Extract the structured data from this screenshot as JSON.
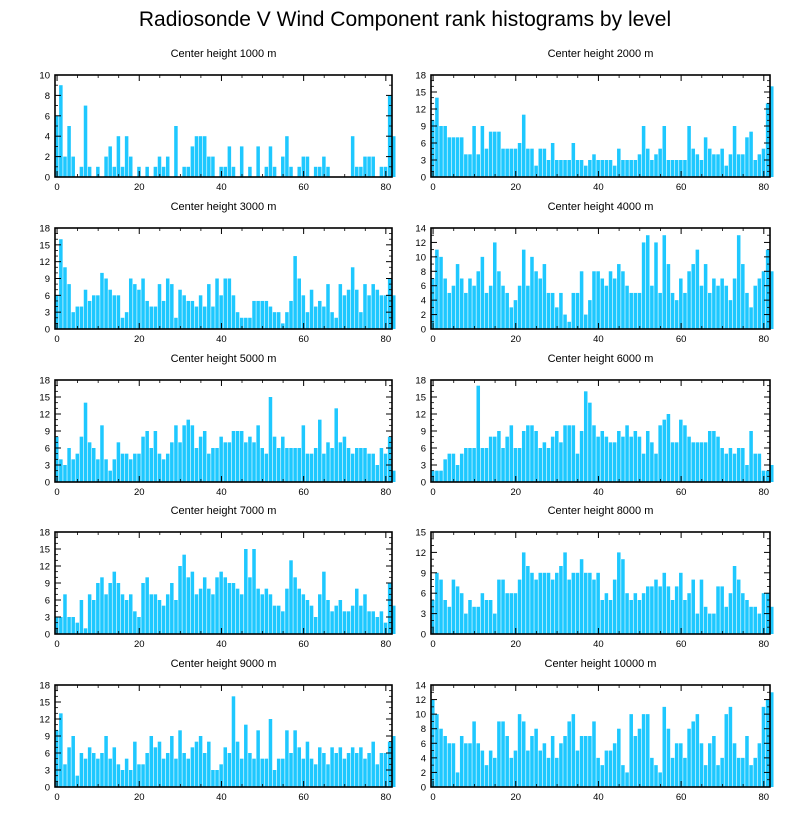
{
  "title": "Radiosonde V Wind Component rank histograms by level",
  "bar_color": "#1ec8ff",
  "axis_color": "#000000",
  "chart_data": [
    {
      "type": "bar",
      "title": "Center height 1000 m",
      "ylim": [
        0,
        10
      ],
      "yticks": [
        0,
        2,
        4,
        6,
        8,
        10
      ],
      "xlim": [
        -0.5,
        81.5
      ],
      "xticks": [
        0,
        20,
        40,
        60,
        80
      ],
      "values": [
        6,
        9,
        2,
        5,
        2,
        0,
        1,
        7,
        1,
        0,
        1,
        0,
        2,
        3,
        1,
        4,
        1,
        4,
        2,
        0,
        1,
        0,
        1,
        0,
        1,
        2,
        1,
        2,
        0,
        5,
        0,
        1,
        1,
        3,
        4,
        4,
        4,
        2,
        2,
        0,
        1,
        1,
        3,
        1,
        0,
        3,
        0,
        1,
        0,
        3,
        0,
        1,
        3,
        1,
        0,
        2,
        4,
        1,
        0,
        1,
        2,
        2,
        0,
        1,
        1,
        2,
        1,
        0,
        0,
        0,
        0,
        0,
        4,
        1,
        1,
        2,
        2,
        2,
        0,
        1,
        1,
        8,
        4
      ]
    },
    {
      "type": "bar",
      "title": "Center height 2000 m",
      "ylim": [
        0,
        18
      ],
      "yticks": [
        0,
        3,
        6,
        9,
        12,
        15,
        18
      ],
      "xlim": [
        -0.5,
        81.5
      ],
      "xticks": [
        0,
        20,
        40,
        60,
        80
      ],
      "values": [
        10,
        14,
        9,
        9,
        7,
        7,
        7,
        7,
        4,
        4,
        9,
        4,
        9,
        5,
        8,
        8,
        8,
        5,
        5,
        5,
        5,
        6,
        11,
        5,
        5,
        2,
        5,
        5,
        3,
        6,
        3,
        3,
        3,
        3,
        6,
        3,
        3,
        2,
        3,
        4,
        3,
        3,
        3,
        3,
        2,
        5,
        3,
        3,
        3,
        3,
        4,
        9,
        5,
        3,
        4,
        5,
        9,
        3,
        3,
        3,
        3,
        3,
        9,
        5,
        4,
        3,
        7,
        5,
        4,
        4,
        5,
        2,
        4,
        9,
        4,
        4,
        7,
        8,
        3,
        4,
        5,
        13,
        16
      ]
    },
    {
      "type": "bar",
      "title": "Center height 3000 m",
      "ylim": [
        0,
        18
      ],
      "yticks": [
        0,
        3,
        6,
        9,
        12,
        15,
        18
      ],
      "xlim": [
        -0.5,
        81.5
      ],
      "xticks": [
        0,
        20,
        40,
        60,
        80
      ],
      "values": [
        6,
        16,
        11,
        8,
        3,
        4,
        4,
        7,
        5,
        6,
        6,
        10,
        9,
        7,
        6,
        6,
        2,
        3,
        9,
        8,
        7,
        9,
        5,
        4,
        4,
        8,
        5,
        9,
        8,
        2,
        7,
        6,
        5,
        5,
        4,
        6,
        4,
        8,
        4,
        9,
        6,
        9,
        9,
        6,
        3,
        2,
        2,
        2,
        5,
        5,
        5,
        5,
        4,
        3,
        3,
        1,
        3,
        5,
        13,
        9,
        6,
        3,
        7,
        4,
        5,
        4,
        8,
        3,
        2,
        8,
        6,
        7,
        11,
        7,
        3,
        8,
        6,
        8,
        7,
        6,
        6,
        9,
        6
      ]
    },
    {
      "type": "bar",
      "title": "Center height 4000 m",
      "ylim": [
        0,
        14
      ],
      "yticks": [
        0,
        2,
        4,
        6,
        8,
        10,
        12,
        14
      ],
      "xlim": [
        -0.5,
        81.5
      ],
      "xticks": [
        0,
        20,
        40,
        60,
        80
      ],
      "values": [
        7,
        11,
        10,
        7,
        5,
        6,
        9,
        7,
        5,
        7,
        6,
        8,
        10,
        5,
        6,
        12,
        8,
        6,
        5,
        3,
        4,
        6,
        11,
        6,
        10,
        8,
        7,
        9,
        5,
        5,
        3,
        5,
        2,
        1,
        5,
        5,
        8,
        2,
        4,
        8,
        8,
        7,
        6,
        8,
        7,
        9,
        8,
        6,
        5,
        5,
        5,
        12,
        13,
        6,
        12,
        5,
        13,
        9,
        5,
        4,
        7,
        5,
        8,
        9,
        11,
        6,
        9,
        5,
        7,
        6,
        7,
        6,
        4,
        7,
        13,
        9,
        5,
        3,
        6,
        7,
        8,
        11,
        8
      ]
    },
    {
      "type": "bar",
      "title": "Center height 5000 m",
      "ylim": [
        0,
        18
      ],
      "yticks": [
        0,
        3,
        6,
        9,
        12,
        15,
        18
      ],
      "xlim": [
        -0.5,
        81.5
      ],
      "xticks": [
        0,
        20,
        40,
        60,
        80
      ],
      "values": [
        8,
        4,
        3,
        6,
        4,
        5,
        8,
        14,
        7,
        6,
        4,
        10,
        4,
        2,
        4,
        7,
        5,
        5,
        4,
        5,
        5,
        8,
        9,
        6,
        9,
        5,
        4,
        5,
        7,
        10,
        7,
        10,
        11,
        10,
        6,
        8,
        9,
        5,
        6,
        6,
        8,
        7,
        7,
        9,
        9,
        9,
        7,
        8,
        7,
        10,
        6,
        5,
        15,
        8,
        6,
        8,
        6,
        6,
        6,
        6,
        10,
        5,
        5,
        6,
        11,
        5,
        7,
        6,
        13,
        7,
        8,
        6,
        5,
        6,
        6,
        6,
        5,
        5,
        3,
        6,
        5,
        8,
        2
      ]
    },
    {
      "type": "bar",
      "title": "Center height 6000 m",
      "ylim": [
        0,
        18
      ],
      "yticks": [
        0,
        3,
        6,
        9,
        12,
        15,
        18
      ],
      "xlim": [
        -0.5,
        81.5
      ],
      "xticks": [
        0,
        20,
        40,
        60,
        80
      ],
      "values": [
        2,
        2,
        2,
        4,
        5,
        5,
        3,
        5,
        6,
        6,
        6,
        17,
        6,
        6,
        8,
        8,
        9,
        6,
        8,
        10,
        6,
        6,
        9,
        10,
        10,
        9,
        6,
        7,
        6,
        8,
        9,
        7,
        10,
        10,
        10,
        5,
        9,
        16,
        14,
        10,
        8,
        9,
        8,
        7,
        7,
        9,
        8,
        10,
        8,
        9,
        8,
        5,
        9,
        7,
        5,
        10,
        11,
        12,
        7,
        7,
        11,
        10,
        8,
        7,
        7,
        7,
        7,
        9,
        9,
        8,
        6,
        5,
        6,
        5,
        6,
        6,
        3,
        9,
        5,
        5,
        2,
        2,
        3
      ]
    },
    {
      "type": "bar",
      "title": "Center height 7000 m",
      "ylim": [
        0,
        18
      ],
      "yticks": [
        0,
        3,
        6,
        9,
        12,
        15,
        18
      ],
      "xlim": [
        -0.5,
        81.5
      ],
      "xticks": [
        0,
        20,
        40,
        60,
        80
      ],
      "values": [
        3,
        3,
        7,
        3,
        3,
        2,
        6,
        1,
        7,
        6,
        9,
        10,
        7,
        9,
        11,
        9,
        7,
        6,
        7,
        4,
        3,
        9,
        10,
        7,
        7,
        6,
        5,
        7,
        9,
        6,
        12,
        14,
        10,
        11,
        7,
        8,
        10,
        8,
        7,
        10,
        11,
        10,
        9,
        9,
        8,
        7,
        15,
        10,
        15,
        8,
        7,
        8,
        7,
        5,
        5,
        4,
        8,
        13,
        10,
        8,
        7,
        6,
        5,
        3,
        7,
        11,
        6,
        4,
        5,
        6,
        4,
        4,
        5,
        8,
        5,
        7,
        4,
        4,
        3,
        4,
        2,
        9,
        5
      ]
    },
    {
      "type": "bar",
      "title": "Center height 8000 m",
      "ylim": [
        0,
        15
      ],
      "yticks": [
        0,
        3,
        6,
        9,
        12,
        15
      ],
      "xlim": [
        -0.5,
        81.5
      ],
      "xticks": [
        0,
        20,
        40,
        60,
        80
      ],
      "values": [
        5,
        9,
        8,
        5,
        4,
        8,
        7,
        6,
        3,
        5,
        4,
        4,
        6,
        5,
        5,
        3,
        8,
        8,
        6,
        6,
        6,
        8,
        12,
        10,
        9,
        8,
        9,
        9,
        9,
        8,
        9,
        10,
        12,
        8,
        9,
        9,
        11,
        9,
        9,
        8,
        9,
        5,
        6,
        5,
        8,
        12,
        11,
        6,
        5,
        6,
        5,
        6,
        7,
        7,
        8,
        7,
        9,
        7,
        5,
        7,
        9,
        5,
        6,
        8,
        3,
        8,
        4,
        3,
        3,
        7,
        7,
        4,
        6,
        10,
        8,
        6,
        5,
        4,
        4,
        3,
        6,
        6,
        4
      ]
    },
    {
      "type": "bar",
      "title": "Center height 9000 m",
      "ylim": [
        0,
        18
      ],
      "yticks": [
        0,
        3,
        6,
        9,
        12,
        15,
        18
      ],
      "xlim": [
        -0.5,
        81.5
      ],
      "xticks": [
        0,
        20,
        40,
        60,
        80
      ],
      "values": [
        10,
        13,
        4,
        7,
        9,
        2,
        6,
        5,
        7,
        6,
        5,
        6,
        9,
        5,
        7,
        4,
        3,
        5,
        3,
        8,
        4,
        4,
        6,
        9,
        7,
        8,
        5,
        6,
        9,
        5,
        10,
        6,
        5,
        7,
        8,
        9,
        6,
        8,
        3,
        3,
        4,
        7,
        6,
        16,
        8,
        5,
        11,
        6,
        5,
        10,
        5,
        5,
        12,
        3,
        5,
        5,
        10,
        6,
        10,
        7,
        5,
        8,
        5,
        4,
        7,
        6,
        4,
        7,
        6,
        7,
        5,
        6,
        7,
        6,
        7,
        5,
        6,
        8,
        4,
        6,
        6,
        8,
        9
      ]
    },
    {
      "type": "bar",
      "title": "Center height 10000 m",
      "ylim": [
        0,
        14
      ],
      "yticks": [
        0,
        2,
        4,
        6,
        8,
        10,
        12,
        14
      ],
      "xlim": [
        -0.5,
        81.5
      ],
      "xticks": [
        0,
        20,
        40,
        60,
        80
      ],
      "values": [
        12,
        10,
        8,
        7,
        6,
        6,
        2,
        7,
        6,
        6,
        9,
        6,
        5,
        3,
        5,
        4,
        9,
        9,
        7,
        4,
        5,
        10,
        9,
        5,
        7,
        8,
        5,
        6,
        4,
        7,
        4,
        6,
        7,
        9,
        10,
        5,
        7,
        7,
        7,
        9,
        4,
        3,
        5,
        5,
        6,
        8,
        3,
        2,
        10,
        7,
        8,
        10,
        10,
        4,
        3,
        2,
        11,
        8,
        4,
        6,
        6,
        4,
        8,
        9,
        10,
        6,
        3,
        6,
        7,
        3,
        4,
        10,
        11,
        6,
        4,
        4,
        7,
        3,
        4,
        6,
        11,
        12,
        13
      ]
    }
  ]
}
